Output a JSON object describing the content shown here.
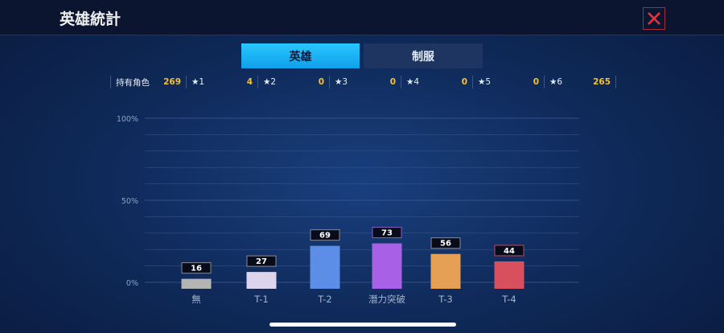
{
  "header": {
    "title": "英雄統計",
    "close_icon": "close-x-icon"
  },
  "tabs": [
    {
      "label": "英雄",
      "active": true
    },
    {
      "label": "制服",
      "active": false
    }
  ],
  "stats": [
    {
      "label": "持有角色",
      "value": "269"
    },
    {
      "label": "★1",
      "value": "4"
    },
    {
      "label": "★2",
      "value": "0"
    },
    {
      "label": "★3",
      "value": "0"
    },
    {
      "label": "★4",
      "value": "0"
    },
    {
      "label": "★5",
      "value": "0"
    },
    {
      "label": "★6",
      "value": "265"
    }
  ],
  "chart_data": {
    "type": "bar",
    "categories": [
      "無",
      "T-1",
      "T-2",
      "潛力突破",
      "T-3",
      "T-4"
    ],
    "values": [
      16,
      27,
      69,
      73,
      56,
      44
    ],
    "total": 269,
    "colors": [
      "#b4b4b4",
      "#dcd4ec",
      "#5c8ee8",
      "#a860e6",
      "#e6a056",
      "#d8505e"
    ],
    "label_border_colors": [
      "#8a8a8a",
      "#8a8a9a",
      "#8a8a9a",
      "#8a5ac8",
      "#8a8a9a",
      "#c04a5a"
    ],
    "yticks": [
      "0%",
      "50%",
      "100%"
    ],
    "ylim": [
      0,
      100
    ],
    "grid": true
  }
}
